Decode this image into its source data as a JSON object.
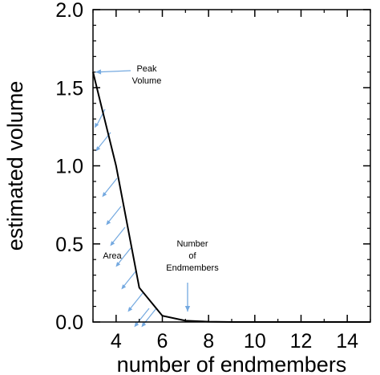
{
  "chart_data": {
    "type": "line",
    "xlabel": "number of endmembers",
    "ylabel": "estimated volume",
    "xlim": [
      3,
      15
    ],
    "ylim": [
      0,
      2.0
    ],
    "x_ticks": [
      4,
      6,
      8,
      10,
      12,
      14
    ],
    "y_ticks": [
      0.0,
      0.5,
      1.0,
      1.5,
      2.0
    ],
    "x_tick_labels": [
      "4",
      "6",
      "8",
      "10",
      "12",
      "14"
    ],
    "y_tick_labels": [
      "0.0",
      "0.5",
      "1.0",
      "1.5",
      "2.0"
    ],
    "series": [
      {
        "x": [
          3,
          4,
          5,
          6,
          7,
          8,
          9,
          10,
          11,
          12,
          13,
          14,
          15
        ],
        "y": [
          1.6,
          1.0,
          0.22,
          0.04,
          0.008,
          0.002,
          0.0,
          0.0,
          0.0,
          0.0,
          0.0,
          0.0,
          0.0
        ]
      }
    ],
    "annotations": {
      "peak": {
        "lines": [
          "Peak",
          "Volume"
        ]
      },
      "area": {
        "text": "Area"
      },
      "endmembers": {
        "lines": [
          "Number",
          "of",
          "Endmembers"
        ]
      }
    },
    "colors": {
      "line": "#000000",
      "arrow": "#74a9e0",
      "hatch": "#74a9e0"
    },
    "grid": false
  }
}
